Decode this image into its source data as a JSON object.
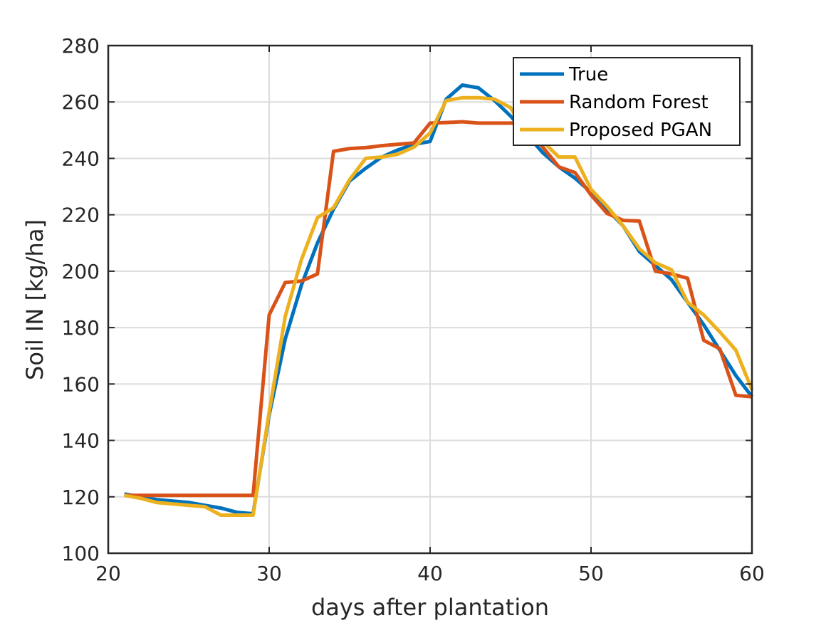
{
  "chart_data": {
    "type": "line",
    "title": "",
    "xlabel": "days after plantation",
    "ylabel": "Soil IN [kg/ha]",
    "xlim": [
      20,
      60
    ],
    "ylim": [
      100,
      280
    ],
    "xticks": [
      20,
      30,
      40,
      50,
      60
    ],
    "yticks": [
      100,
      120,
      140,
      160,
      180,
      200,
      220,
      240,
      260,
      280
    ],
    "grid": true,
    "legend_position": "top-right",
    "series": [
      {
        "name": "True",
        "color": "#0072BD",
        "x": [
          21,
          22,
          23,
          24,
          25,
          26,
          27,
          28,
          29,
          30,
          31,
          32,
          33,
          34,
          35,
          36,
          37,
          38,
          39,
          40,
          41,
          42,
          43,
          44,
          45,
          46,
          47,
          48,
          49,
          50,
          51,
          52,
          53,
          54,
          55,
          56,
          57,
          58,
          59,
          60
        ],
        "y": [
          121,
          120,
          119,
          118.5,
          118,
          117,
          116,
          114.5,
          114,
          149,
          176,
          195,
          210,
          222,
          232,
          236.5,
          240.5,
          243,
          245,
          246,
          261,
          266,
          265,
          260.5,
          255,
          248.5,
          242,
          237,
          233,
          228,
          222,
          216,
          207,
          202,
          197,
          189,
          181,
          172,
          163,
          155.5
        ]
      },
      {
        "name": "Random Forest",
        "color": "#D95319",
        "x": [
          21,
          22,
          23,
          24,
          25,
          26,
          27,
          28,
          29,
          30,
          31,
          32,
          33,
          34,
          35,
          36,
          37,
          38,
          39,
          40,
          41,
          42,
          43,
          44,
          45,
          46,
          47,
          48,
          49,
          50,
          51,
          52,
          53,
          54,
          55,
          56,
          57,
          58,
          59,
          60
        ],
        "y": [
          120.5,
          120.5,
          120.5,
          120.5,
          120.5,
          120.5,
          120.5,
          120.5,
          120.5,
          184.5,
          196,
          196.5,
          199,
          242.5,
          243.5,
          243.8,
          244.5,
          245,
          245.5,
          252.5,
          252.7,
          253,
          252.5,
          252.5,
          252.5,
          252.5,
          244,
          237,
          235,
          227,
          220.5,
          218,
          217.8,
          200,
          199,
          197.5,
          175.5,
          172.5,
          156,
          155.5
        ]
      },
      {
        "name": "Proposed PGAN",
        "color": "#EDB120",
        "x": [
          21,
          22,
          23,
          24,
          25,
          26,
          27,
          28,
          29,
          30,
          31,
          32,
          33,
          34,
          35,
          36,
          37,
          38,
          39,
          40,
          41,
          42,
          43,
          44,
          45,
          46,
          47,
          48,
          49,
          50,
          51,
          52,
          53,
          54,
          55,
          56,
          57,
          58,
          59,
          60
        ],
        "y": [
          120.5,
          119.5,
          118,
          117.5,
          117,
          116.5,
          113.5,
          113.5,
          113.5,
          150,
          184,
          204,
          219,
          222.5,
          232.5,
          240,
          240.5,
          241.5,
          244,
          249,
          260.5,
          261.5,
          261.5,
          261,
          258,
          248,
          246,
          240.5,
          240.5,
          229,
          223,
          216,
          208,
          203,
          200.5,
          189,
          184.5,
          178.5,
          172,
          158
        ]
      }
    ]
  }
}
